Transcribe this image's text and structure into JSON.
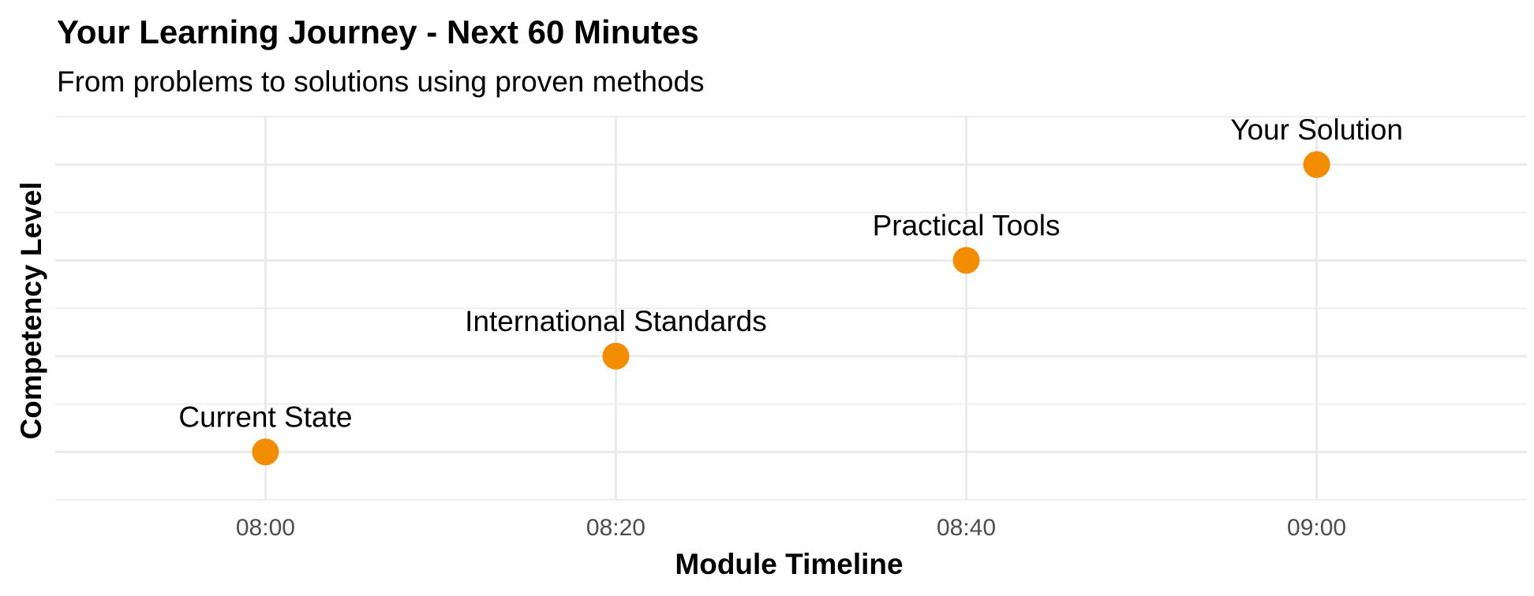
{
  "chart_data": {
    "type": "scatter",
    "title": "Your Learning Journey - Next 60 Minutes",
    "subtitle": "From problems to solutions using proven methods",
    "xlabel": "Module Timeline",
    "ylabel": "Competency Level",
    "x_ticks": [
      "08:00",
      "08:20",
      "08:40",
      "09:00"
    ],
    "points": [
      {
        "x": "08:00",
        "y": 1,
        "label": "Current State"
      },
      {
        "x": "08:20",
        "y": 2,
        "label": "International Standards"
      },
      {
        "x": "08:40",
        "y": 3,
        "label": "Practical Tools"
      },
      {
        "x": "09:00",
        "y": 4,
        "label": "Your Solution"
      }
    ],
    "ylim": [
      0.5,
      4.5
    ],
    "xlim": [
      "07:48",
      "09:12"
    ],
    "grid": true,
    "y_tick_labels_shown": false,
    "point_color": "#F28C00",
    "background": "#ffffff"
  }
}
